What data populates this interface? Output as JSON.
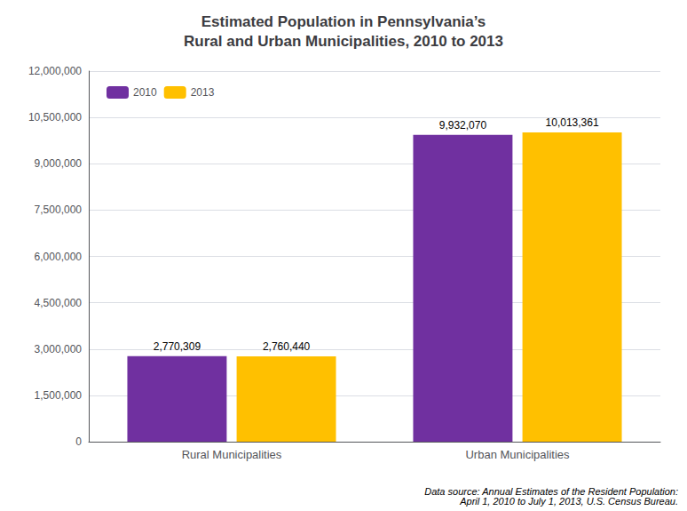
{
  "chart_data": {
    "type": "bar",
    "title": "Estimated Population in Pennsylvania’s\nRural and Urban Municipalities, 2010 to 2013",
    "categories": [
      "Rural Municipalities",
      "Urban Municipalities"
    ],
    "series": [
      {
        "name": "2010",
        "color": "#7030a0",
        "values": [
          2770309,
          9932070
        ],
        "value_labels": [
          "2,770,309",
          "9,932,070"
        ]
      },
      {
        "name": "2013",
        "color": "#ffc000",
        "values": [
          2760440,
          10013361
        ],
        "value_labels": [
          "2,760,440",
          "10,013,361"
        ]
      }
    ],
    "ylim": [
      0,
      12000000
    ],
    "yticks": [
      0,
      {
        "value": 1500000,
        "label": "1,500,000"
      },
      {
        "value": 3000000,
        "label": "3,000,000"
      },
      {
        "value": 4500000,
        "label": "4,500,000"
      },
      {
        "value": 6000000,
        "label": "6,000,000"
      },
      {
        "value": 7500000,
        "label": "7,500,000"
      },
      {
        "value": 9000000,
        "label": "9,000,000"
      },
      {
        "value": 10500000,
        "label": "10,500,000"
      },
      {
        "value": 12000000,
        "label": "12,000,000"
      }
    ],
    "grid": true,
    "legend": "upper left",
    "data_labels": true,
    "annotations": [
      "Data source: Annual Estimates of the Resident Population:\nApril 1, 2010 to July 1, 2013, U.S. Census Bureau."
    ]
  }
}
